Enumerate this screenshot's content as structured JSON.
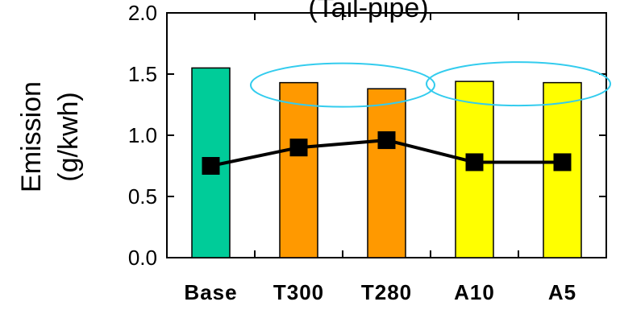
{
  "chart_data": {
    "type": "bar",
    "title": "(Tail-pipe)",
    "ylabel_line1": "Emission",
    "ylabel_line2": "(g/kwh)",
    "categories": [
      "Base",
      "T300",
      "T280",
      "A10",
      "A5"
    ],
    "bar_values": [
      1.55,
      1.43,
      1.38,
      1.44,
      1.43
    ],
    "bar_colors": [
      "#00cc99",
      "#ff9900",
      "#ff9900",
      "#ffff00",
      "#ffff00"
    ],
    "line_values": [
      0.75,
      0.9,
      0.96,
      0.78,
      0.78
    ],
    "yticks": [
      "2.0",
      "1.5",
      "1.0",
      "0.5",
      "0.0"
    ],
    "ylim": [
      0,
      2.0
    ],
    "grid": false,
    "highlight_color": "#33ccee"
  }
}
